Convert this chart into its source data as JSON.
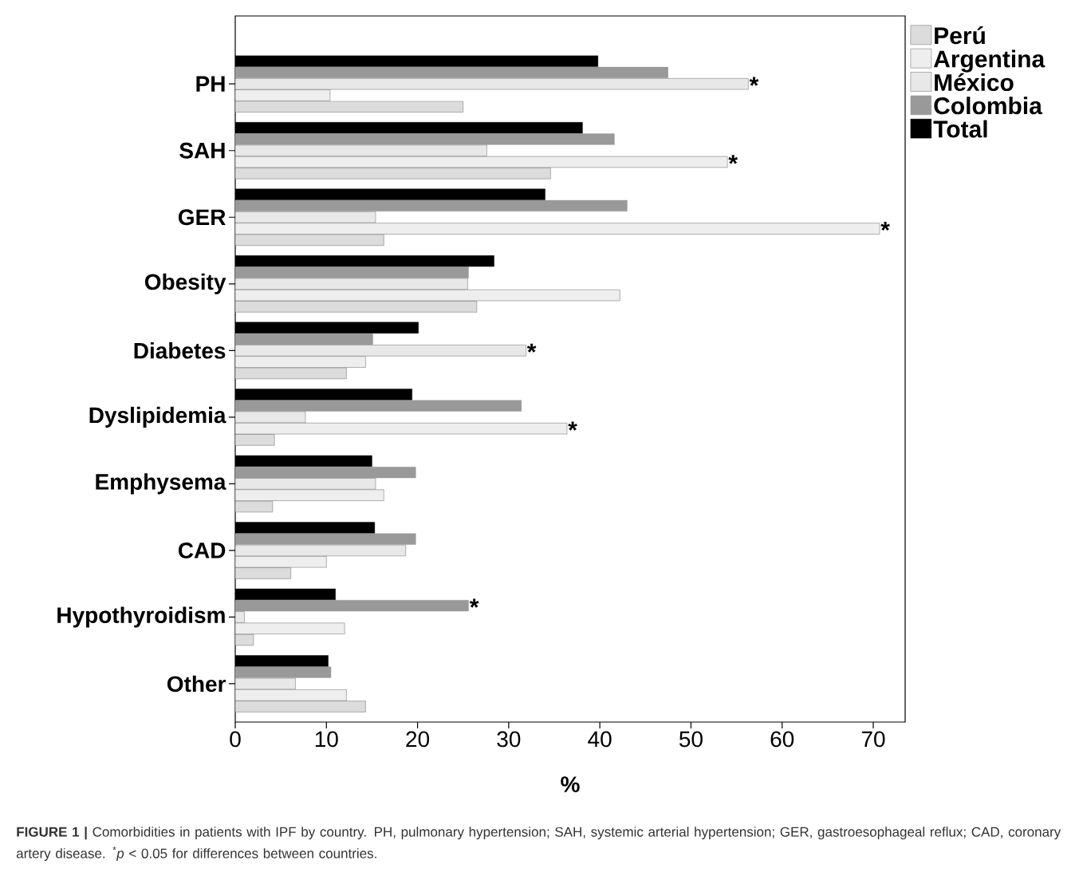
{
  "chart_data": {
    "type": "bar",
    "orientation": "horizontal",
    "xlabel": "%",
    "categories": [
      "PH",
      "SAH",
      "GER",
      "Obesity",
      "Diabetes",
      "Dyslipidemia",
      "Emphysema",
      "CAD",
      "Hypothyroidism",
      "Other"
    ],
    "series": [
      {
        "name": "Perú",
        "color": "#dcdcdc",
        "values": [
          25.0,
          34.6,
          16.3,
          26.5,
          12.2,
          4.3,
          4.1,
          6.1,
          2.0,
          14.3
        ]
      },
      {
        "name": "Argentina",
        "color": "#eeeeee",
        "values": [
          10.4,
          54.0,
          70.7,
          42.2,
          14.3,
          36.4,
          16.3,
          10.0,
          12.0,
          12.2
        ],
        "value_labels": [
          null,
          "*",
          "*",
          null,
          null,
          "*",
          null,
          null,
          null,
          null
        ]
      },
      {
        "name": "México",
        "color": "#e8e8e8",
        "values": [
          56.3,
          27.6,
          15.4,
          25.5,
          31.9,
          7.7,
          15.4,
          18.7,
          1.0,
          6.6
        ],
        "value_labels": [
          "*",
          null,
          null,
          null,
          "*",
          null,
          null,
          null,
          null,
          null
        ]
      },
      {
        "name": "Colombia",
        "color": "#999999",
        "values": [
          47.5,
          41.6,
          43.0,
          25.6,
          15.1,
          31.4,
          19.8,
          19.8,
          25.6,
          10.5
        ],
        "value_labels": [
          null,
          null,
          null,
          null,
          null,
          null,
          null,
          null,
          "*",
          null
        ]
      },
      {
        "name": "Total",
        "color": "#000000",
        "values": [
          39.8,
          38.1,
          34.0,
          28.4,
          20.1,
          19.4,
          15.0,
          15.3,
          11.0,
          10.2
        ]
      }
    ],
    "xlim": [
      0,
      73.5
    ],
    "xticks": [
      0,
      10,
      20,
      30,
      40,
      50,
      60,
      70
    ],
    "legend": "top right",
    "grid": false,
    "annotations": [
      "**FIGURE 1 |** Comorbidities in patients with IPF by country. PH, pulmonary hypertension; SAH, systemic arterial hypertension; GER, gastroesophageal reflux; CAD, coronary artery disease. $^{*}$*p* < 0.05 for differences between countries."
    ]
  }
}
